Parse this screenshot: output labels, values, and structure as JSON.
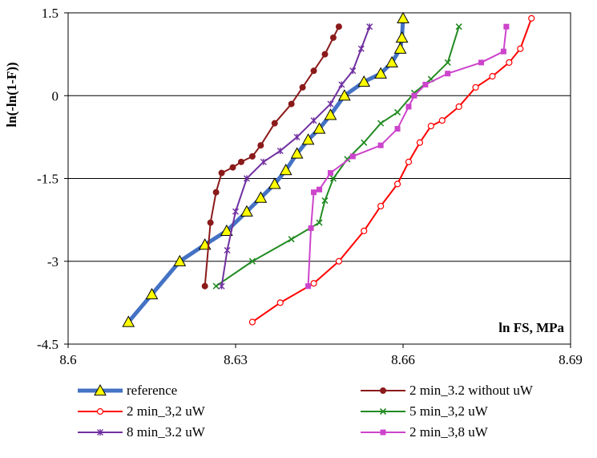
{
  "chart_data": {
    "type": "line",
    "title": "",
    "xlabel": "ln FS, MPa",
    "ylabel": "ln(-ln(1-F))",
    "xlim": [
      8.6,
      8.69
    ],
    "ylim": [
      -4.5,
      1.5
    ],
    "xticks": [
      "8.6",
      "8.63",
      "8.66",
      "8.69"
    ],
    "yticks": [
      "1.5",
      "0",
      "-1.5",
      "-3",
      "-4.5"
    ],
    "grid": "horizontal",
    "legend_position": "bottom",
    "series": [
      {
        "name": "reference",
        "color": "#4472C4",
        "marker": "triangle",
        "marker_color": "#FFFF00",
        "x": [
          8.6108,
          8.615,
          8.62,
          8.6245,
          8.6284,
          8.632,
          8.6345,
          8.637,
          8.639,
          8.641,
          8.643,
          8.645,
          8.647,
          8.6495,
          8.653,
          8.656,
          8.658,
          8.6595,
          8.6598,
          8.66
        ],
        "y": [
          -4.1,
          -3.6,
          -3.0,
          -2.7,
          -2.45,
          -2.1,
          -1.85,
          -1.6,
          -1.35,
          -1.05,
          -0.8,
          -0.6,
          -0.35,
          0.0,
          0.25,
          0.4,
          0.6,
          0.85,
          1.05,
          1.4
        ]
      },
      {
        "name": "2 min_3.2 without uW",
        "color": "#8B1A1A",
        "marker": "circle",
        "marker_color": "#8B1A1A",
        "x": [
          8.6245,
          8.6255,
          8.6265,
          8.6275,
          8.6295,
          8.631,
          8.633,
          8.6345,
          8.637,
          8.64,
          8.642,
          8.644,
          8.646,
          8.6475,
          8.6485
        ],
        "y": [
          -3.45,
          -2.3,
          -1.75,
          -1.4,
          -1.3,
          -1.2,
          -1.1,
          -0.9,
          -0.5,
          -0.15,
          0.15,
          0.45,
          0.75,
          1.05,
          1.25
        ]
      },
      {
        "name": "2 min_3,2 uW",
        "color": "#FF0000",
        "marker": "circle-open",
        "marker_color": "#FF0000",
        "x": [
          8.633,
          8.638,
          8.644,
          8.6485,
          8.653,
          8.656,
          8.659,
          8.661,
          8.663,
          8.665,
          8.667,
          8.67,
          8.673,
          8.676,
          8.679,
          8.681,
          8.683
        ],
        "y": [
          -4.1,
          -3.75,
          -3.4,
          -3.0,
          -2.45,
          -2.0,
          -1.6,
          -1.2,
          -0.85,
          -0.55,
          -0.45,
          -0.2,
          0.15,
          0.35,
          0.6,
          0.85,
          1.4
        ]
      },
      {
        "name": "5 min_3,2 uW",
        "color": "#228B22",
        "marker": "x",
        "marker_color": "#228B22",
        "x": [
          8.6265,
          8.633,
          8.64,
          8.645,
          8.646,
          8.6475,
          8.65,
          8.653,
          8.656,
          8.659,
          8.662,
          8.665,
          8.668,
          8.67
        ],
        "y": [
          -3.45,
          -3.0,
          -2.6,
          -2.3,
          -1.9,
          -1.5,
          -1.15,
          -0.85,
          -0.5,
          -0.3,
          0.05,
          0.3,
          0.6,
          1.25
        ]
      },
      {
        "name": "8 min_3.2 uW",
        "color": "#7030A0",
        "marker": "star",
        "marker_color": "#7030A0",
        "x": [
          8.6275,
          8.6285,
          8.63,
          8.632,
          8.635,
          8.638,
          8.641,
          8.644,
          8.647,
          8.649,
          8.651,
          8.6525,
          8.654
        ],
        "y": [
          -3.45,
          -2.8,
          -2.1,
          -1.5,
          -1.2,
          -1.0,
          -0.75,
          -0.45,
          -0.15,
          0.2,
          0.45,
          0.85,
          1.25
        ]
      },
      {
        "name": "2 min_3,8 uW",
        "color": "#CC44CC",
        "marker": "square",
        "marker_color": "#CC44CC",
        "x": [
          8.643,
          8.6435,
          8.644,
          8.645,
          8.647,
          8.651,
          8.656,
          8.659,
          8.661,
          8.662,
          8.664,
          8.668,
          8.674,
          8.678,
          8.6785
        ],
        "y": [
          -3.45,
          -2.4,
          -1.75,
          -1.7,
          -1.4,
          -1.1,
          -0.9,
          -0.6,
          -0.2,
          0.0,
          0.2,
          0.4,
          0.6,
          0.8,
          1.25
        ]
      }
    ]
  }
}
